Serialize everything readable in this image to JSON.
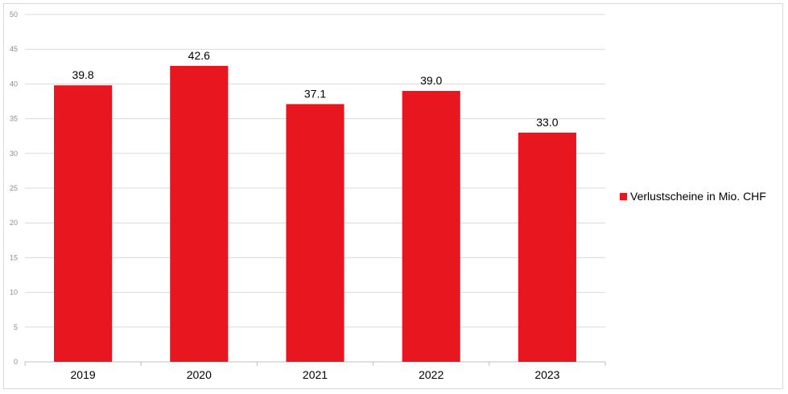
{
  "chart_data": {
    "type": "bar",
    "categories": [
      "2019",
      "2020",
      "2021",
      "2022",
      "2023"
    ],
    "series": [
      {
        "name": "Verlustscheine in Mio. CHF",
        "values": [
          39.8,
          42.6,
          37.1,
          39.0,
          33.0
        ]
      }
    ],
    "data_labels": [
      "39.8",
      "42.6",
      "37.1",
      "39.0",
      "33.0"
    ],
    "yticks": [
      "0",
      "5",
      "10",
      "15",
      "20",
      "25",
      "30",
      "35",
      "40",
      "45",
      "50"
    ],
    "ylim": [
      0,
      50
    ],
    "grid": true,
    "legend_position": "right",
    "bar_color": "#e8171f",
    "title": "",
    "xlabel": "",
    "ylabel": ""
  }
}
